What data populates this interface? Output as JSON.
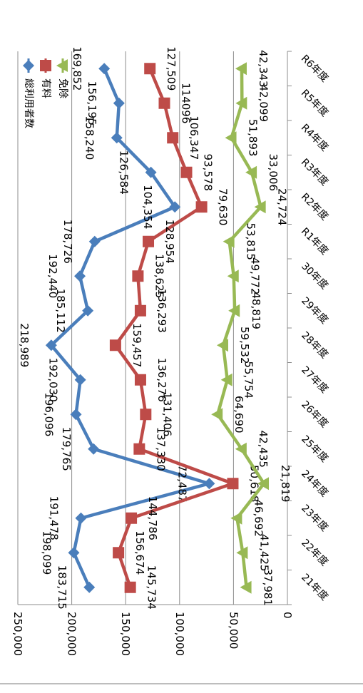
{
  "chart_data": {
    "type": "line",
    "categories": [
      "21年度",
      "22年度",
      "23年度",
      "24年度",
      "25年度",
      "26年度",
      "27年度",
      "28年度",
      "29年度",
      "30年度",
      "R1年度",
      "R2年度",
      "R3年度",
      "R4年度",
      "R5年度",
      "R6年度"
    ],
    "series": [
      {
        "name": "総利用者数",
        "color": "#4a7ebb",
        "marker": "diamond",
        "values": [
          183715,
          198099,
          191478,
          72487,
          179765,
          196096,
          192030,
          218989,
          185112,
          192440,
          178726,
          104354,
          126584,
          158240,
          156195,
          169852
        ],
        "labels": [
          "183,715",
          "198,099",
          "191,478",
          "72,487",
          "179,765",
          "196,096",
          "192,030",
          "218,989",
          "185,112",
          "192,440",
          "178,726",
          "104,354",
          "126,584",
          "158,240",
          "156,195",
          "169,852"
        ]
      },
      {
        "name": "有料",
        "color": "#be4b48",
        "marker": "square",
        "values": [
          145734,
          156674,
          144786,
          50618,
          137330,
          131406,
          136276,
          159457,
          136293,
          138625,
          128954,
          79630,
          93578,
          106347,
          114096,
          127509
        ],
        "labels": [
          "145,734",
          "156,674",
          "144,786",
          "50,618",
          "137,330",
          "131,406",
          "136,276",
          "159,457",
          "136,293",
          "138,625",
          "128,954",
          "79,630",
          "93,578",
          "106,347",
          "114096",
          "127,509"
        ]
      },
      {
        "name": "免除",
        "color": "#98b954",
        "marker": "triangle",
        "values": [
          37981,
          41425,
          46692,
          21819,
          42435,
          64690,
          55754,
          59532,
          48819,
          49772,
          53815,
          24724,
          33006,
          51893,
          42099,
          42343
        ],
        "labels": [
          "37,981",
          "41,425",
          "46,692",
          "21,819",
          "42,435",
          "64,690",
          "55,754",
          "59,532",
          "48,819",
          "49,772",
          "53,815",
          "24,724",
          "33,006",
          "51,893",
          "42,099",
          "42,343"
        ]
      }
    ],
    "yticks": [
      "0",
      "50,000",
      "100,000",
      "150,000",
      "200,000",
      "250,000"
    ],
    "ylim": [
      0,
      250000
    ],
    "grid": true,
    "legend": "top-right",
    "rotation": "rotated 90 degrees clockwise"
  }
}
